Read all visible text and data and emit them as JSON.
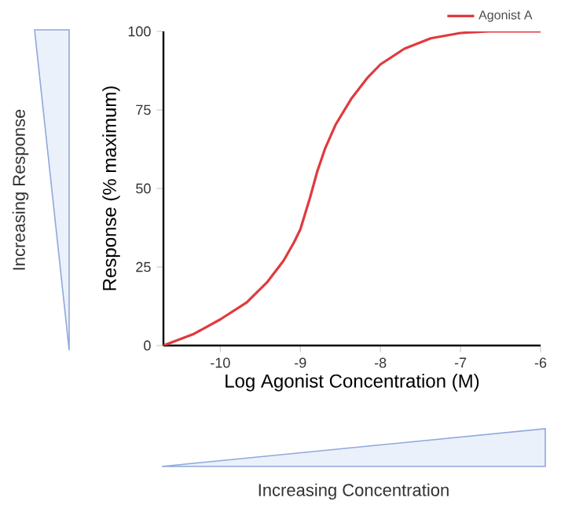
{
  "chart_data": {
    "type": "line",
    "xlabel": "Log Agonist Concentration (M)",
    "ylabel": "Response (% maximum)",
    "annotations": [
      "Increasing Response",
      "Increasing Concentration"
    ],
    "xlim": [
      -10.71,
      -6
    ],
    "ylim": [
      0,
      100
    ],
    "xticks": [
      -10,
      -9,
      -8,
      -7,
      -6
    ],
    "yticks": [
      0,
      25,
      50,
      75,
      100
    ],
    "legend": "top right",
    "marker": "none",
    "line_style": "solid",
    "series": [
      {
        "name": "Agonist A",
        "color": "#e03a3e",
        "x": [
          -10.71,
          -10.33,
          -10.0,
          -9.67,
          -9.41,
          -9.21,
          -9.08,
          -9.0,
          -8.88,
          -8.79,
          -8.69,
          -8.56,
          -8.36,
          -8.16,
          -8.0,
          -7.7,
          -7.37,
          -7.0,
          -6.65,
          -6.0
        ],
        "values": [
          0,
          3.7,
          8.3,
          13.7,
          20.3,
          27,
          32.8,
          37,
          47,
          55.3,
          62.8,
          70.3,
          78.7,
          85.3,
          89.5,
          94.5,
          97.8,
          99.5,
          100,
          100
        ]
      }
    ]
  }
}
